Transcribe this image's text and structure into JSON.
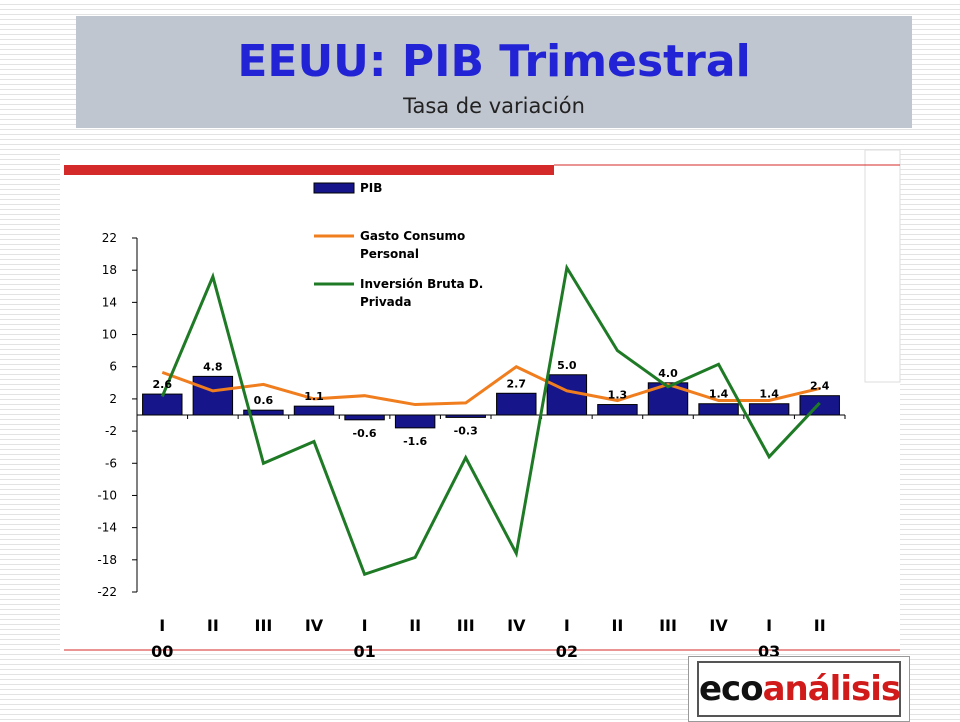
{
  "header": {
    "title": "EEUU: PIB Trimestral",
    "subtitle": "Tasa de variación"
  },
  "logo": {
    "part1": "eco",
    "part2": "análisis"
  },
  "colors": {
    "accent_red": "#d42a2a",
    "bar": "#16168a",
    "line_orange": "#f07d1e",
    "line_green": "#1f7a26"
  },
  "chart_data": {
    "type": "bar+line",
    "categories": [
      "I",
      "II",
      "III",
      "IV",
      "I",
      "II",
      "III",
      "IV",
      "I",
      "II",
      "III",
      "IV",
      "I",
      "II"
    ],
    "year_labels": [
      {
        "label": "00",
        "index": 0
      },
      {
        "label": "01",
        "index": 4
      },
      {
        "label": "02",
        "index": 8
      },
      {
        "label": "03",
        "index": 12
      }
    ],
    "ylim": [
      -22,
      22
    ],
    "yticks": [
      22,
      18,
      14,
      10,
      6,
      2,
      -2,
      -6,
      -10,
      -14,
      -18,
      -22
    ],
    "series": [
      {
        "name": "PIB",
        "type": "bar",
        "color": "#16168a",
        "values": [
          2.6,
          4.8,
          0.6,
          1.1,
          -0.6,
          -1.6,
          -0.3,
          2.7,
          5.0,
          1.3,
          4.0,
          1.4,
          1.4,
          2.4
        ],
        "labels": [
          "2.6",
          "4.8",
          "0.6",
          "1.1",
          "-0.6",
          "-1.6",
          "-0.3",
          "2.7",
          "5.0",
          "1.3",
          "4.0",
          "1.4",
          "1.4",
          "2.4"
        ]
      },
      {
        "name": "Gasto Consumo Personal",
        "type": "line",
        "color": "#f07d1e",
        "values": [
          5.3,
          3.0,
          3.8,
          2.0,
          2.4,
          1.3,
          1.5,
          6.0,
          3.0,
          1.8,
          3.8,
          1.8,
          1.8,
          3.3
        ]
      },
      {
        "name": "Inversión Bruta D. Privada",
        "type": "line",
        "color": "#1f7a26",
        "values": [
          2.3,
          17.2,
          -6.0,
          -3.3,
          -19.8,
          -17.7,
          -5.3,
          -17.2,
          18.3,
          8.0,
          3.5,
          6.3,
          -5.2,
          1.5
        ]
      }
    ],
    "legend": [
      {
        "lines": [
          "PIB"
        ]
      },
      {
        "lines": [
          "Gasto Consumo",
          "Personal"
        ]
      },
      {
        "lines": [
          "Inversión Bruta D.",
          "Privada"
        ]
      }
    ],
    "legend_position": "top-center",
    "grid": false
  }
}
